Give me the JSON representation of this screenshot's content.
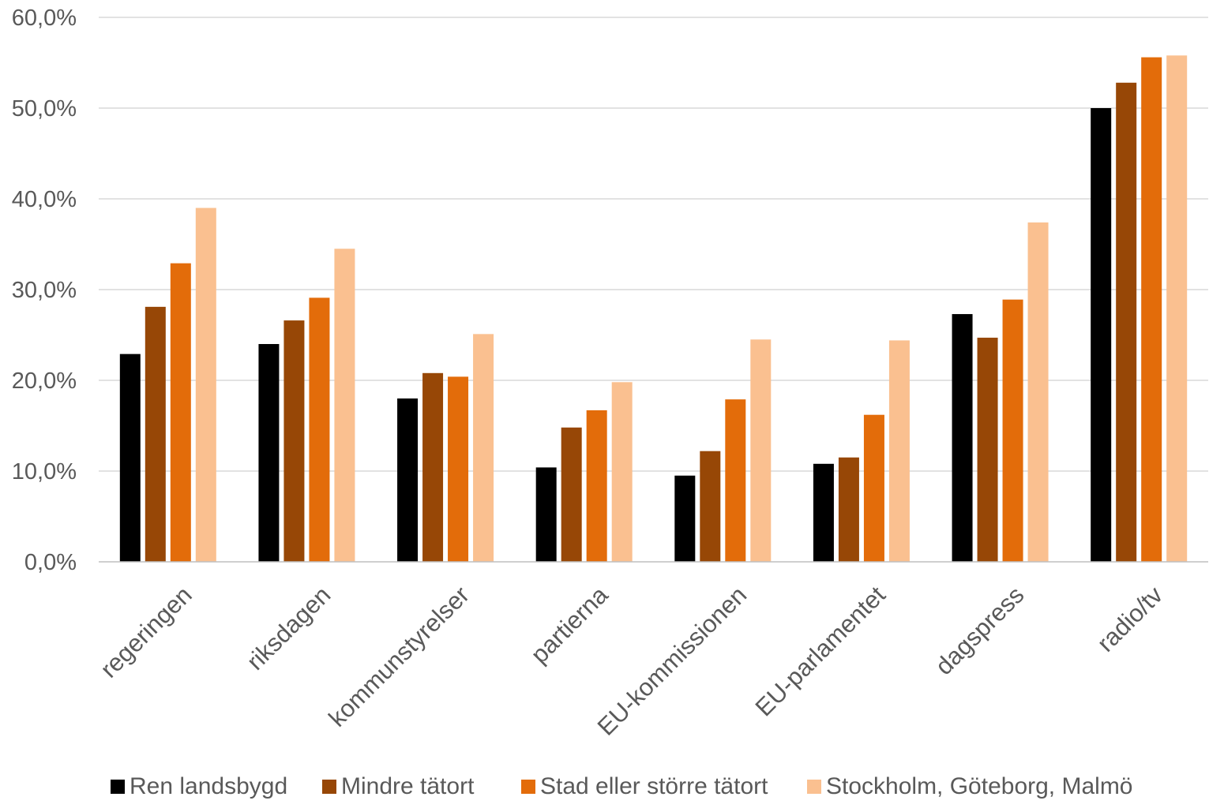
{
  "chart_data": {
    "type": "bar",
    "title": "",
    "xlabel": "",
    "ylabel": "",
    "ylim": [
      0,
      60
    ],
    "y_tick_step": 10,
    "y_tick_format": "percent-one-decimal-comma",
    "grid": true,
    "legend_position": "bottom",
    "categories": [
      "regeringen",
      "riksdagen",
      "kommunstyrelser",
      "partierna",
      "EU-kommissionen",
      "EU-parlamentet",
      "dagspress",
      "radio/tv"
    ],
    "series": [
      {
        "name": "Ren landsbygd",
        "color": "#000000",
        "values": [
          22.9,
          24.0,
          18.0,
          10.4,
          9.5,
          10.8,
          27.3,
          50.0
        ]
      },
      {
        "name": "Mindre tätort",
        "color": "#974706",
        "values": [
          28.1,
          26.6,
          20.8,
          14.8,
          12.2,
          11.5,
          24.7,
          52.8
        ]
      },
      {
        "name": "Stad eller större tätort",
        "color": "#E36C0A",
        "values": [
          32.9,
          29.1,
          20.4,
          16.7,
          17.9,
          16.2,
          28.9,
          55.6
        ]
      },
      {
        "name": "Stockholm, Göteborg, Malmö",
        "color": "#FAC090",
        "values": [
          39.0,
          34.5,
          25.1,
          19.8,
          24.5,
          24.4,
          37.4,
          55.8
        ]
      }
    ]
  }
}
